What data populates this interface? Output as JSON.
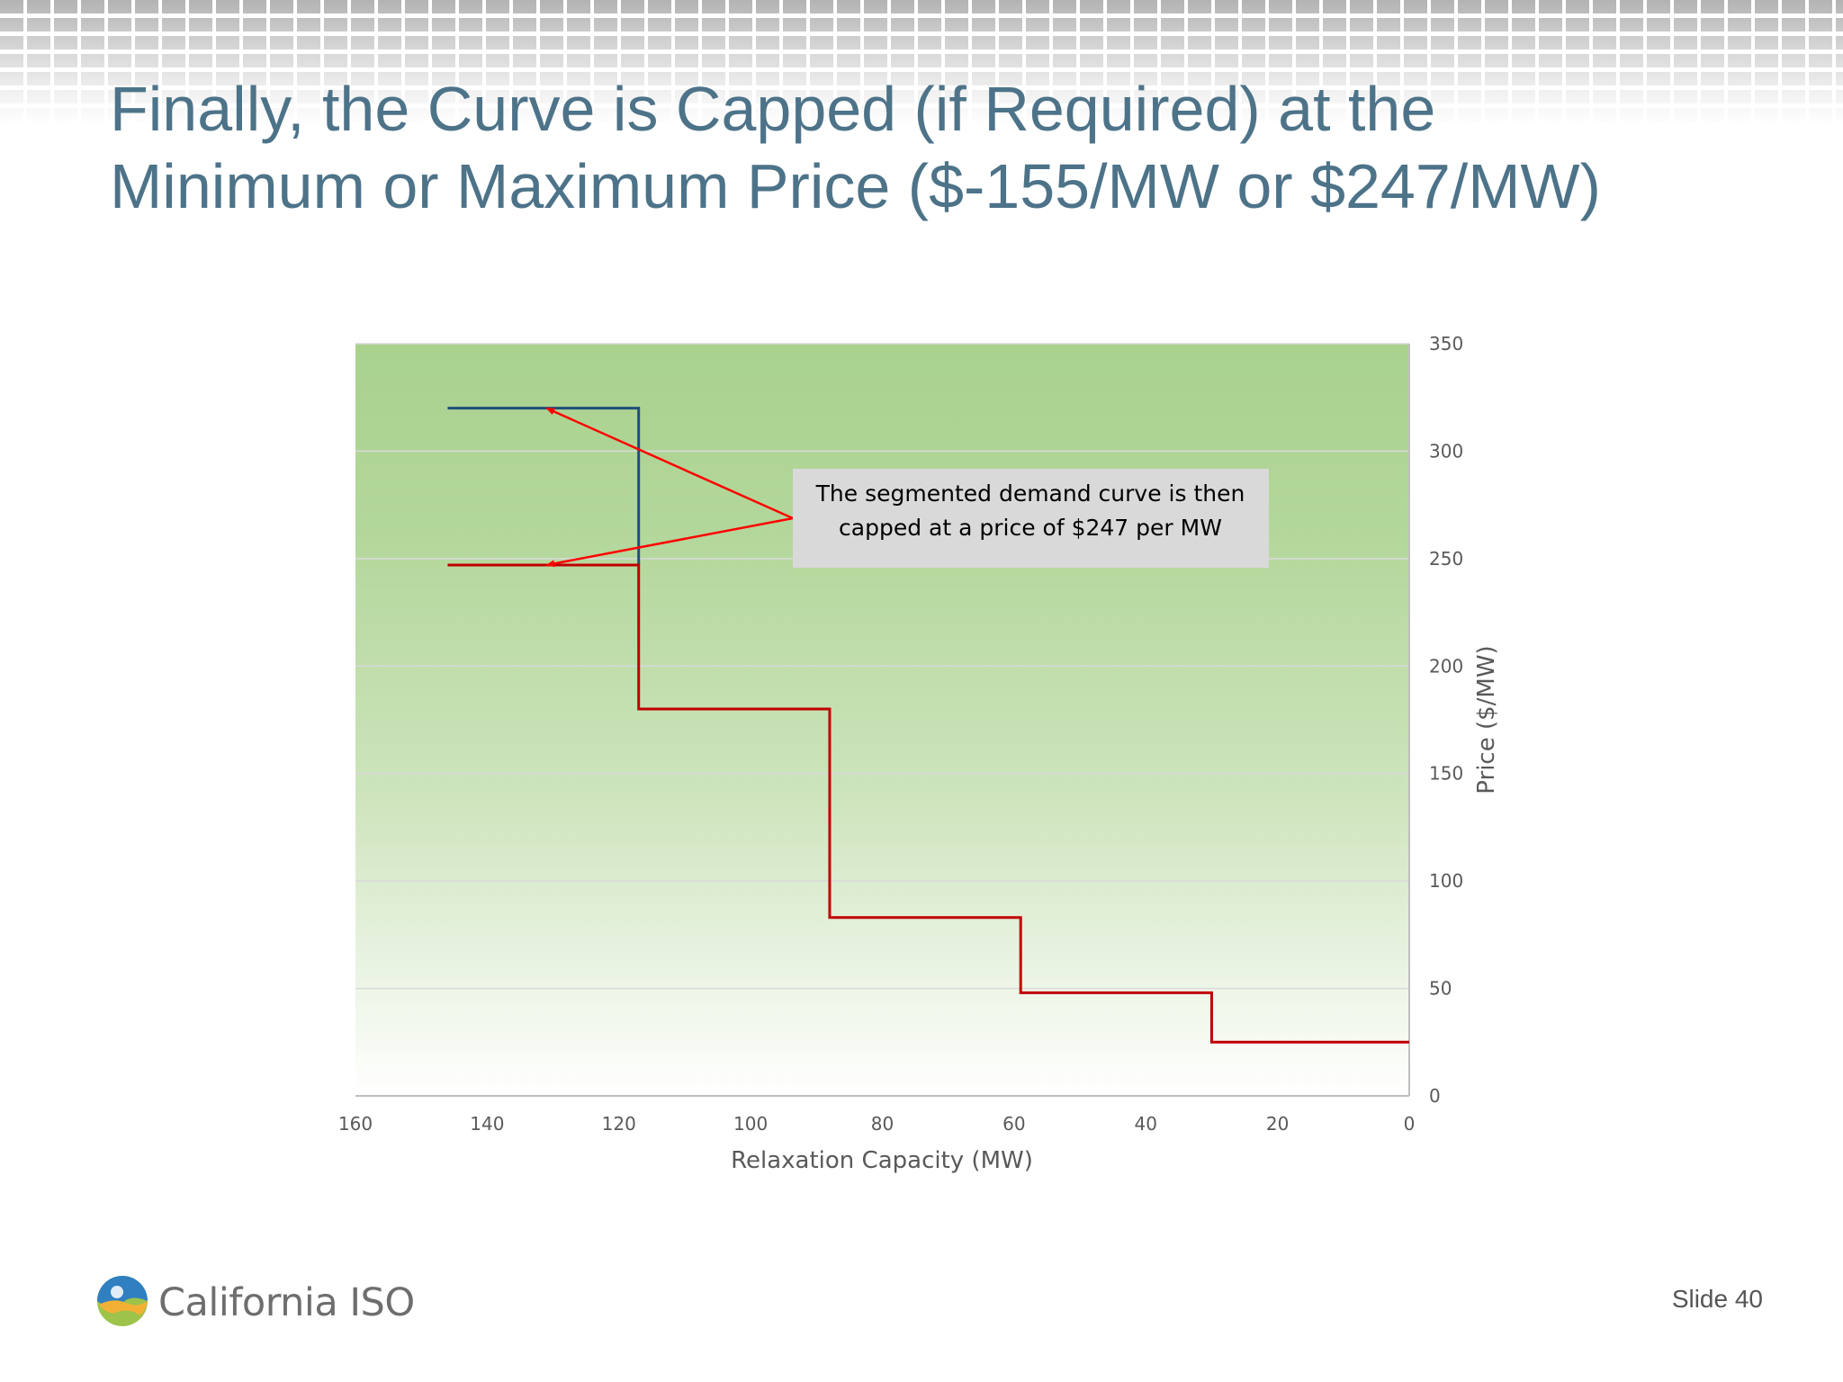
{
  "slide": {
    "title_line1": "Finally, the Curve is Capped (if Required) at the",
    "title_line2": "Minimum or Maximum Price ($-155/MW or $247/MW)",
    "slide_number": "Slide 40",
    "logo_text": "California ISO",
    "title_color": "#4d7389"
  },
  "chart_data": {
    "type": "line",
    "xlabel": "Relaxation Capacity (MW)",
    "ylabel": "Price ($/MW)",
    "xlim": [
      160,
      0
    ],
    "ylim": [
      0,
      350
    ],
    "x_reversed": true,
    "y_axis_side": "right",
    "xticks": [
      160,
      140,
      120,
      100,
      80,
      60,
      40,
      20,
      0
    ],
    "yticks": [
      0,
      50,
      100,
      150,
      200,
      250,
      300,
      350
    ],
    "grid": true,
    "plot_background": "green gradient",
    "series": [
      {
        "color": "#1f4e79",
        "points": [
          [
            146,
            320
          ],
          [
            117,
            320
          ],
          [
            117,
            247
          ]
        ]
      },
      {
        "color": "#c00000",
        "points": [
          [
            146,
            247
          ],
          [
            117,
            247
          ],
          [
            117,
            180
          ],
          [
            88,
            180
          ],
          [
            88,
            83
          ],
          [
            59,
            83
          ],
          [
            59,
            48
          ],
          [
            30,
            48
          ],
          [
            30,
            25
          ],
          [
            0,
            25
          ]
        ]
      }
    ],
    "annotation": {
      "text_line1": "The segmented demand curve is then",
      "text_line2": "capped at a price of $247 per MW",
      "arrow_color": "#ff0000",
      "arrow_targets": [
        [
          131,
          320
        ],
        [
          131,
          247
        ]
      ]
    }
  }
}
